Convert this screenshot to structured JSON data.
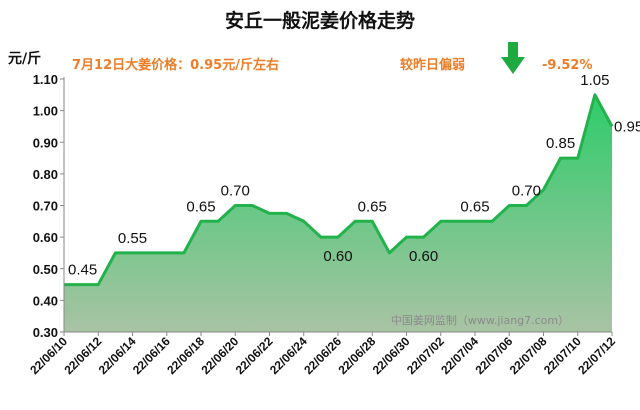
{
  "chart_data": {
    "type": "area",
    "title": "安丘一般泥姜价格走势",
    "ylabel": "元/斤",
    "ylim": [
      0.3,
      1.1
    ],
    "yticks": [
      "0.30",
      "0.40",
      "0.50",
      "0.60",
      "0.70",
      "0.80",
      "0.90",
      "1.00",
      "1.10"
    ],
    "x": [
      "22/06/10",
      "22/06/11",
      "22/06/12",
      "22/06/13",
      "22/06/14",
      "22/06/15",
      "22/06/16",
      "22/06/17",
      "22/06/18",
      "22/06/19",
      "22/06/20",
      "22/06/21",
      "22/06/22",
      "22/06/23",
      "22/06/24",
      "22/06/25",
      "22/06/26",
      "22/06/27",
      "22/06/28",
      "22/06/29",
      "22/06/30",
      "22/07/01",
      "22/07/02",
      "22/07/03",
      "22/07/04",
      "22/07/05",
      "22/07/06",
      "22/07/07",
      "22/07/08",
      "22/07/09",
      "22/07/10",
      "22/07/11",
      "22/07/12"
    ],
    "xtick_labels": [
      "22/06/10",
      "22/06/12",
      "22/06/14",
      "22/06/16",
      "22/06/18",
      "22/06/20",
      "22/06/22",
      "22/06/24",
      "22/06/26",
      "22/06/28",
      "22/06/30",
      "22/07/02",
      "22/07/04",
      "22/07/06",
      "22/07/08",
      "22/07/10",
      "22/07/12"
    ],
    "values": [
      0.45,
      0.45,
      0.45,
      0.55,
      0.55,
      0.55,
      0.55,
      0.55,
      0.65,
      0.65,
      0.7,
      0.7,
      0.675,
      0.675,
      0.65,
      0.6,
      0.6,
      0.65,
      0.65,
      0.55,
      0.6,
      0.6,
      0.65,
      0.65,
      0.65,
      0.65,
      0.7,
      0.7,
      0.75,
      0.85,
      0.85,
      1.05,
      0.95
    ],
    "data_labels": [
      {
        "index": 0,
        "text": "0.45"
      },
      {
        "index": 4,
        "text": "0.55"
      },
      {
        "index": 8,
        "text": "0.65"
      },
      {
        "index": 10,
        "text": "0.70"
      },
      {
        "index": 16,
        "text": "0.60"
      },
      {
        "index": 18,
        "text": "0.65"
      },
      {
        "index": 21,
        "text": "0.60"
      },
      {
        "index": 24,
        "text": "0.65"
      },
      {
        "index": 27,
        "text": "0.70"
      },
      {
        "index": 29,
        "text": "0.85"
      },
      {
        "index": 31,
        "text": "1.05"
      },
      {
        "index": 32,
        "text": "0.95"
      }
    ],
    "annotation_left": "7月12日大姜价格：0.95元/斤左右",
    "annotation_right_label": "较昨日偏弱",
    "annotation_change": "-9.52%",
    "watermark": "中国姜网监制（www.jiang7.com）",
    "colors": {
      "line": "#22b24c",
      "fill_top": "#2ecc6a",
      "fill_bottom": "#a9c3a4",
      "annotation": "#ee7d27",
      "arrow": "#1faa40",
      "axis": "#888888"
    }
  }
}
